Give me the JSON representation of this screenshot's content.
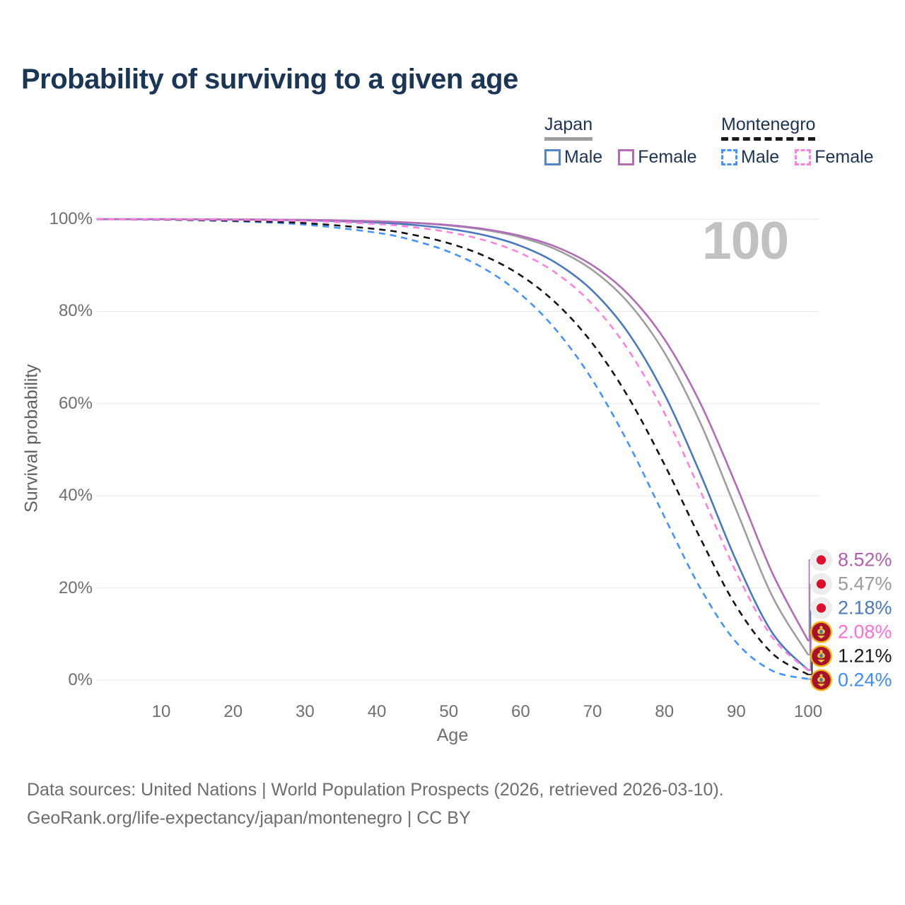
{
  "title": "Probability of surviving to a given age",
  "legend": {
    "japan": {
      "title": "Japan",
      "male": "Male",
      "female": "Female",
      "male_swatch": "#5585c8",
      "female_swatch": "#b56bb5",
      "underline_color": "#9e9e9e",
      "line_style": "solid"
    },
    "montenegro": {
      "title": "Montenegro",
      "male": "Male",
      "female": "Female",
      "male_swatch": "#4292ff",
      "female_swatch": "#ff80e0",
      "underline_color": "#1a1a1a",
      "line_style": "dashed"
    }
  },
  "footer": {
    "line1": "Data sources: United Nations | World Population Prospects (2026, retrieved 2026-03-10).",
    "line2": "GeoRank.org/life-expectancy/japan/montenegro | CC BY"
  },
  "chart_data": {
    "type": "line",
    "title": "Probability of surviving to a given age",
    "xlabel": "Age",
    "ylabel": "Survival probability",
    "xlim": [
      1,
      100
    ],
    "ylim": [
      0,
      100
    ],
    "grid": "horizontal",
    "legend_position": "top-right",
    "hover_age_watermark": "100",
    "xticks": [
      "10",
      "20",
      "30",
      "40",
      "50",
      "60",
      "70",
      "80",
      "90",
      "100"
    ],
    "xtick_values": [
      10,
      20,
      30,
      40,
      50,
      60,
      70,
      80,
      90,
      100
    ],
    "yticks": [
      "100%",
      "80%",
      "60%",
      "40%",
      "20%",
      "0%"
    ],
    "ytick_values": [
      100,
      80,
      60,
      40,
      20,
      0
    ],
    "x": [
      1,
      10,
      20,
      30,
      40,
      45,
      50,
      55,
      60,
      65,
      70,
      75,
      80,
      85,
      90,
      95,
      100
    ],
    "series": [
      {
        "name": "Japan Female",
        "country": "Japan",
        "sex": "Female",
        "line_color": "#b16bb8",
        "label_color": "#b05fb0",
        "dashed": false,
        "flag": "japan",
        "end_label": "8.52%",
        "values": [
          100,
          99.99,
          99.95,
          99.85,
          99.56,
          99.24,
          98.72,
          97.85,
          96.38,
          93.96,
          89.99,
          83.67,
          73.97,
          60.07,
          42.24,
          23.3,
          8.52
        ]
      },
      {
        "name": "Japan Both sexes",
        "country": "Japan",
        "sex": "Both",
        "line_color": "#9e9e9e",
        "label_color": "#9a9a9a",
        "dashed": false,
        "flag": "japan",
        "end_label": "5.47%",
        "values": [
          100,
          99.99,
          99.95,
          99.84,
          99.53,
          99.2,
          98.64,
          97.68,
          96.06,
          93.37,
          88.94,
          81.86,
          71.05,
          55.79,
          36.92,
          18.25,
          5.47
        ]
      },
      {
        "name": "Japan Male",
        "country": "Japan",
        "sex": "Male",
        "line_color": "#4878c0",
        "label_color": "#4878c0",
        "dashed": false,
        "flag": "japan",
        "end_label": "2.18%",
        "values": [
          100,
          99.98,
          99.92,
          99.75,
          99.27,
          98.76,
          97.92,
          96.52,
          94.21,
          90.45,
          84.46,
          75.27,
          62.02,
          44.76,
          25.87,
          10.29,
          2.18
        ]
      },
      {
        "name": "Montenegro Female",
        "country": "Montenegro",
        "sex": "Female",
        "line_color": "#ff80e0",
        "label_color": "#ff6ed8",
        "dashed": true,
        "flag": "montenegro",
        "end_label": "2.08%",
        "values": [
          100,
          99.96,
          99.87,
          99.62,
          98.94,
          98.27,
          97.18,
          95.42,
          92.62,
          88.23,
          81.5,
          71.6,
          57.96,
          41.05,
          23.38,
          9.33,
          2.08
        ]
      },
      {
        "name": "Montenegro Both sexes",
        "country": "Montenegro",
        "sex": "Both",
        "line_color": "#141414",
        "label_color": "#1a1a1a",
        "dashed": true,
        "flag": "montenegro",
        "end_label": "1.21%",
        "values": [
          100,
          99.91,
          99.68,
          99.14,
          97.84,
          96.63,
          94.79,
          91.99,
          87.81,
          81.68,
          73.02,
          61.34,
          46.81,
          30.75,
          16.02,
          5.82,
          1.21
        ]
      },
      {
        "name": "Montenegro Male",
        "country": "Montenegro",
        "sex": "Male",
        "line_color": "#4292ff",
        "label_color": "#3d8bfd",
        "dashed": true,
        "flag": "montenegro",
        "end_label": "0.24%",
        "values": [
          100,
          99.87,
          99.56,
          98.82,
          97.06,
          95.43,
          92.95,
          89.22,
          83.72,
          75.85,
          65.08,
          51.3,
          35.45,
          19.97,
          8.2,
          2.06,
          0.24
        ]
      }
    ]
  }
}
